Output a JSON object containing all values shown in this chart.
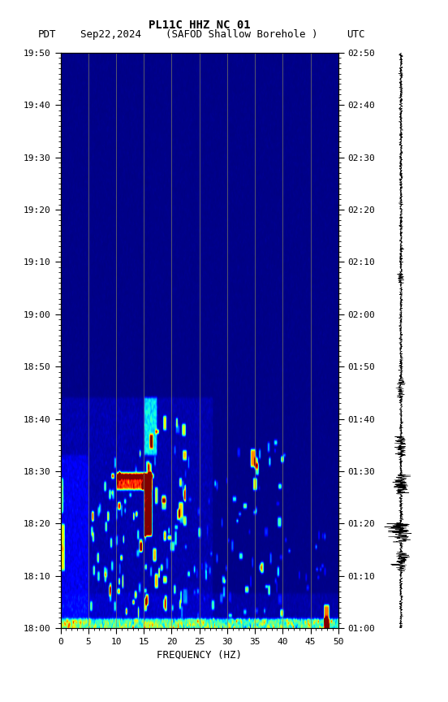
{
  "title_line1": "PL11C HHZ NC 01",
  "title_line2": "Sep22,2024    (SAFOD Shallow Borehole )",
  "label_left": "PDT",
  "label_right": "UTC",
  "xlabel": "FREQUENCY (HZ)",
  "freq_min": 0,
  "freq_max": 50,
  "ytick_pdt": [
    "18:00",
    "18:10",
    "18:20",
    "18:30",
    "18:40",
    "18:50",
    "19:00",
    "19:10",
    "19:20",
    "19:30",
    "19:40",
    "19:50"
  ],
  "ytick_utc": [
    "01:00",
    "01:10",
    "01:20",
    "01:30",
    "01:40",
    "01:50",
    "02:00",
    "02:10",
    "02:20",
    "02:30",
    "02:40",
    "02:50"
  ],
  "xticks": [
    0,
    5,
    10,
    15,
    20,
    25,
    30,
    35,
    40,
    45,
    50
  ],
  "n_freq_bins": 500,
  "n_time_bins": 1100,
  "background_color": "#ffffff",
  "vertical_line_color": "#888860",
  "vertical_line_positions": [
    5,
    10,
    15,
    20,
    25,
    30,
    35,
    40,
    45
  ],
  "vmin": 0.0,
  "vmax": 8.0,
  "base_noise_scale": 0.08,
  "low_freq_strip_scale": 3.5,
  "font_size_title1": 10,
  "font_size_title2": 9,
  "font_size_ticks": 8,
  "font_size_xlabel": 9
}
